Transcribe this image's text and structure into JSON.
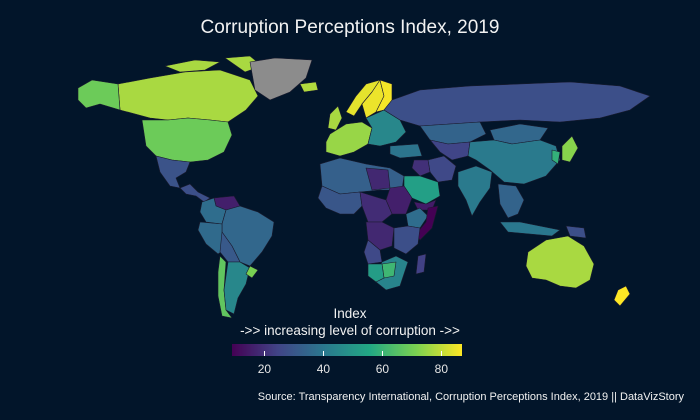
{
  "title": "Corruption Perceptions Index, 2019",
  "legend": {
    "title_line1": "Index",
    "title_line2": "->> increasing level of corruption ->>",
    "ticks": [
      20,
      40,
      60,
      80
    ],
    "min": 9,
    "max": 87
  },
  "source": "Source: Transparency International, Corruption Perceptions Index, 2019 || DataVizStory",
  "colors": {
    "background": "#02152a",
    "scale": [
      "#440154",
      "#414487",
      "#2a788e",
      "#22a884",
      "#7ad151",
      "#fde725"
    ],
    "no_data": "#8c8c8c"
  },
  "chart_data": {
    "type": "choropleth",
    "title": "Corruption Perceptions Index, 2019",
    "legend_title": "Index ->> increasing level of corruption ->>",
    "color_scale": "viridis",
    "range": [
      9,
      87
    ],
    "legend_ticks": [
      20,
      40,
      60,
      80
    ],
    "regions": [
      {
        "name": "Canada",
        "value": 77
      },
      {
        "name": "Alaska (United States)",
        "value": 69
      },
      {
        "name": "United States",
        "value": 69
      },
      {
        "name": "Greenland",
        "value": null
      },
      {
        "name": "Mexico",
        "value": 29
      },
      {
        "name": "Central America",
        "value": 28
      },
      {
        "name": "Venezuela",
        "value": 16
      },
      {
        "name": "Colombia",
        "value": 37
      },
      {
        "name": "Brazil",
        "value": 35
      },
      {
        "name": "Peru",
        "value": 36
      },
      {
        "name": "Bolivia",
        "value": 31
      },
      {
        "name": "Chile",
        "value": 67
      },
      {
        "name": "Argentina",
        "value": 45
      },
      {
        "name": "Uruguay",
        "value": 71
      },
      {
        "name": "Iceland",
        "value": 78
      },
      {
        "name": "Norway",
        "value": 84
      },
      {
        "name": "Sweden",
        "value": 85
      },
      {
        "name": "Finland",
        "value": 86
      },
      {
        "name": "United Kingdom",
        "value": 77
      },
      {
        "name": "Western Europe",
        "value": 75
      },
      {
        "name": "Eastern Europe",
        "value": 45
      },
      {
        "name": "Russia",
        "value": 28
      },
      {
        "name": "Kazakhstan",
        "value": 34
      },
      {
        "name": "Central Asia",
        "value": 25
      },
      {
        "name": "Mongolia",
        "value": 35
      },
      {
        "name": "China",
        "value": 41
      },
      {
        "name": "Japan",
        "value": 73
      },
      {
        "name": "Korea",
        "value": 59
      },
      {
        "name": "Turkey",
        "value": 39
      },
      {
        "name": "Iran",
        "value": 26
      },
      {
        "name": "Iraq",
        "value": 20
      },
      {
        "name": "Saudi Arabia",
        "value": 53
      },
      {
        "name": "Yemen",
        "value": 15
      },
      {
        "name": "India",
        "value": 41
      },
      {
        "name": "Southeast Asia",
        "value": 34
      },
      {
        "name": "Indonesia",
        "value": 40
      },
      {
        "name": "Papua New Guinea",
        "value": 28
      },
      {
        "name": "North Africa",
        "value": 33
      },
      {
        "name": "Libya",
        "value": 18
      },
      {
        "name": "Sudan",
        "value": 16
      },
      {
        "name": "West Africa",
        "value": 30
      },
      {
        "name": "Central Africa",
        "value": 19
      },
      {
        "name": "DR Congo",
        "value": 18
      },
      {
        "name": "Ethiopia",
        "value": 37
      },
      {
        "name": "Somalia",
        "value": 9
      },
      {
        "name": "East Africa",
        "value": 28
      },
      {
        "name": "Angola",
        "value": 26
      },
      {
        "name": "Southern Africa",
        "value": 44
      },
      {
        "name": "Botswana",
        "value": 61
      },
      {
        "name": "Namibia",
        "value": 52
      },
      {
        "name": "Madagascar",
        "value": 24
      },
      {
        "name": "Australia",
        "value": 77
      },
      {
        "name": "New Zealand",
        "value": 87
      }
    ]
  }
}
